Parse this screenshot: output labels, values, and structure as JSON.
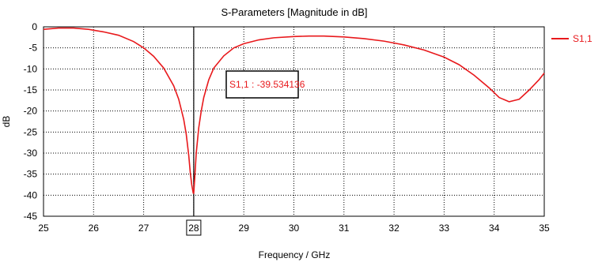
{
  "chart_data": {
    "type": "line",
    "title": "S-Parameters [Magnitude in dB]",
    "xlabel": "Frequency / GHz",
    "ylabel": "dB",
    "xlim": [
      25,
      35
    ],
    "ylim": [
      -45,
      0
    ],
    "x_ticks": [
      25,
      26,
      27,
      28,
      29,
      30,
      31,
      32,
      33,
      34,
      35
    ],
    "y_ticks": [
      0,
      -5,
      -10,
      -15,
      -20,
      -25,
      -30,
      -35,
      -40,
      -45
    ],
    "grid": true,
    "legend_position": "top-right",
    "series": [
      {
        "name": "S1,1",
        "color": "#e8191c",
        "x": [
          25.0,
          25.3,
          25.6,
          25.9,
          26.2,
          26.5,
          26.8,
          27.0,
          27.2,
          27.4,
          27.6,
          27.7,
          27.8,
          27.85,
          27.9,
          27.93,
          27.96,
          27.99,
          28.0,
          28.02,
          28.05,
          28.1,
          28.15,
          28.2,
          28.3,
          28.4,
          28.6,
          28.8,
          29.0,
          29.3,
          29.6,
          30.0,
          30.3,
          30.6,
          31.0,
          31.4,
          31.8,
          32.2,
          32.6,
          33.0,
          33.3,
          33.6,
          33.9,
          34.1,
          34.3,
          34.5,
          34.7,
          34.9,
          35.0
        ],
        "y": [
          -0.6,
          -0.3,
          -0.3,
          -0.6,
          -1.2,
          -2.0,
          -3.5,
          -5.0,
          -7.0,
          -9.8,
          -14.0,
          -17.2,
          -22.0,
          -25.5,
          -30.5,
          -34.5,
          -37.5,
          -39.5,
          -39.53,
          -36.0,
          -30.0,
          -24.0,
          -20.0,
          -16.8,
          -12.6,
          -9.8,
          -6.9,
          -5.0,
          -4.0,
          -3.1,
          -2.6,
          -2.3,
          -2.2,
          -2.2,
          -2.4,
          -2.8,
          -3.4,
          -4.3,
          -5.5,
          -7.2,
          -9.0,
          -11.5,
          -14.5,
          -16.8,
          -17.8,
          -17.2,
          -15.0,
          -12.5,
          -11.0
        ]
      }
    ],
    "marker": {
      "label": "S1,1 : -39.534136",
      "x": 28.0,
      "highlighted_x_tick": "28"
    }
  }
}
